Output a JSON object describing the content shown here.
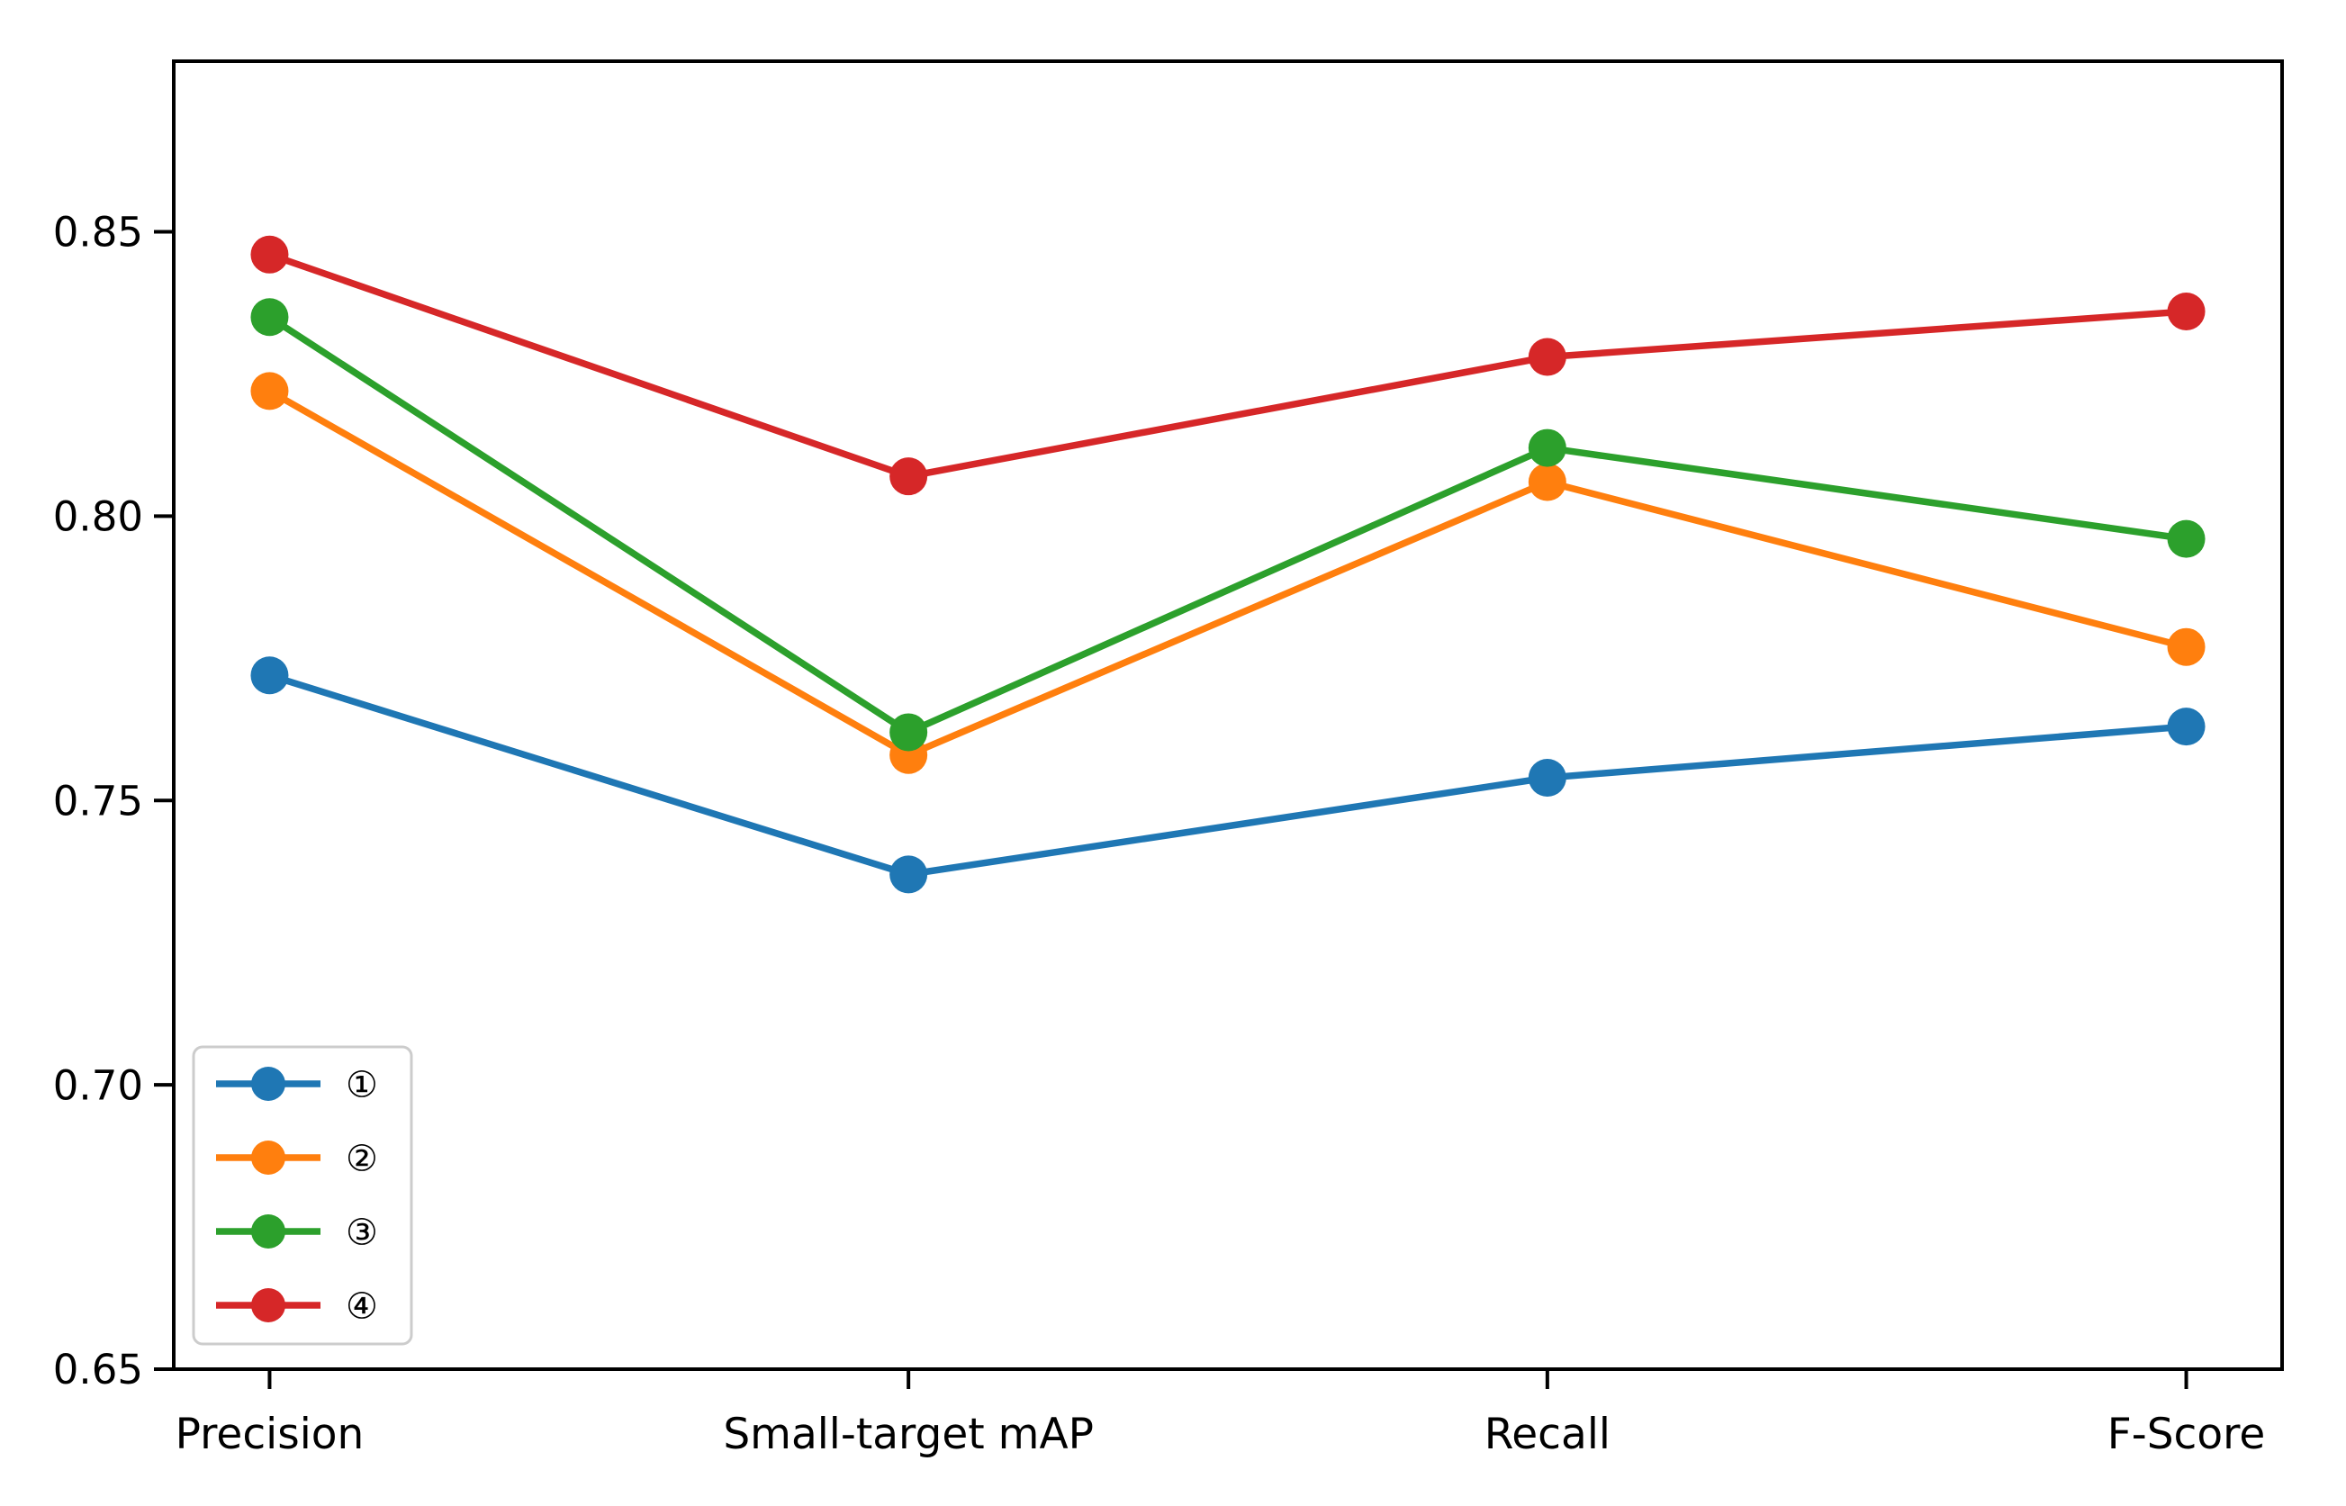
{
  "chart_data": {
    "type": "line",
    "title": "",
    "xlabel": "",
    "ylabel": "",
    "categories": [
      "Precision",
      "Small-target mAP",
      "Recall",
      "F-Score"
    ],
    "series": [
      {
        "name": "①",
        "color": "#1f77b4",
        "values": [
          0.772,
          0.737,
          0.754,
          0.763
        ]
      },
      {
        "name": "②",
        "color": "#ff7f0e",
        "values": [
          0.822,
          0.758,
          0.806,
          0.777
        ]
      },
      {
        "name": "③",
        "color": "#2ca02c",
        "values": [
          0.835,
          0.762,
          0.812,
          0.796
        ]
      },
      {
        "name": "④",
        "color": "#d62728",
        "values": [
          0.846,
          0.807,
          0.828,
          0.836
        ]
      }
    ],
    "yticks": [
      0.65,
      0.7,
      0.75,
      0.8,
      0.85
    ],
    "ytick_labels": [
      "0.65",
      "0.70",
      "0.75",
      "0.80",
      "0.85"
    ],
    "ylim": [
      0.65,
      0.88
    ],
    "grid": false,
    "legend": {
      "position": "lower left",
      "entries": [
        "①",
        "②",
        "③",
        "④"
      ]
    },
    "axis_color": "#000000",
    "background": "#ffffff"
  }
}
